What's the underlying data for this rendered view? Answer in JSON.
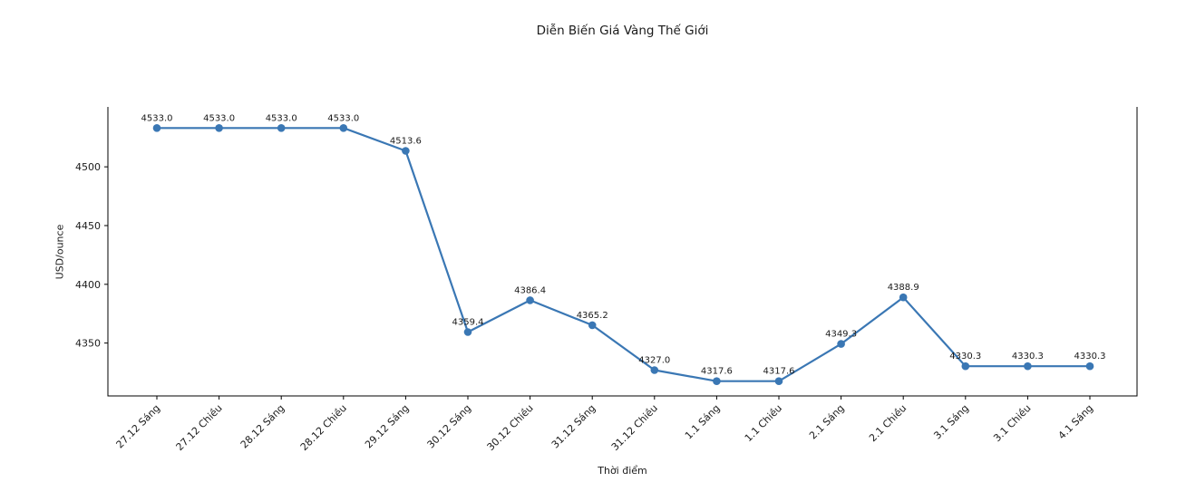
{
  "chart_data": {
    "type": "line",
    "title": "Diễn Biến Giá Vàng Thế Giới",
    "xlabel": "Thời điểm",
    "ylabel": "USD/ounce",
    "categories": [
      "27.12 Sáng",
      "27.12 Chiều",
      "28.12 Sáng",
      "28.12 Chiều",
      "29.12 Sáng",
      "30.12 Sáng",
      "30.12 Chiều",
      "31.12 Sáng",
      "31.12 Chiều",
      "1.1 Sáng",
      "1.1 Chiều",
      "2.1 Sáng",
      "2.1 Chiều",
      "3.1 Sáng",
      "3.1 Chiều",
      "4.1 Sáng"
    ],
    "values": [
      4533.0,
      4533.0,
      4533.0,
      4533.0,
      4513.6,
      4359.4,
      4386.4,
      4365.2,
      4327.0,
      4317.6,
      4317.6,
      4349.3,
      4388.9,
      4330.3,
      4330.3,
      4330.3
    ],
    "point_labels": [
      "4533.0",
      "4533.0",
      "4533.0",
      "4533.0",
      "4513.6",
      "4359.4",
      "4386.4",
      "4365.2",
      "4327.0",
      "4317.6",
      "4317.6",
      "4349.3",
      "4388.9",
      "4330.3",
      "4330.3",
      "4330.3"
    ],
    "yticks": [
      4350,
      4400,
      4450,
      4500
    ],
    "ylim": [
      4305,
      4551
    ],
    "grid": false,
    "legend": "none",
    "line_color": "#3a77b4",
    "marker_color": "#3a77b4",
    "axis_color": "#000000",
    "text_color": "#1a1a1a"
  }
}
